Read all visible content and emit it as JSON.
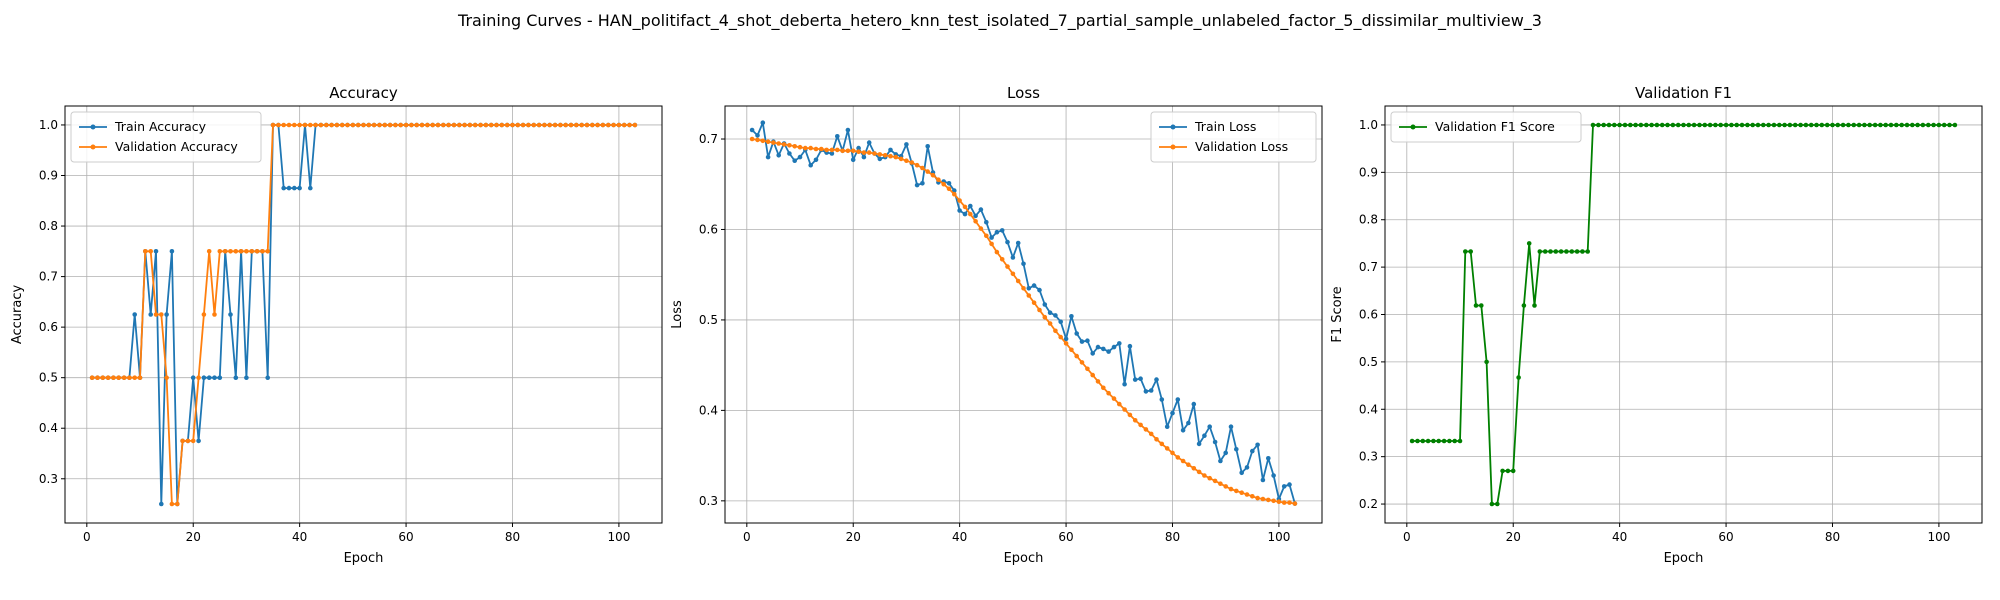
{
  "figure": {
    "suptitle": "Training Curves - HAN_politifact_4_shot_deberta_hetero_knn_test_isolated_7_partial_sample_unlabeled_factor_5_dissimilar_multiview_3"
  },
  "chart_data": [
    {
      "type": "line",
      "title": "Accuracy",
      "xlabel": "Epoch",
      "ylabel": "Accuracy",
      "xlim": [
        -4.1,
        108.1
      ],
      "ylim": [
        0.2125,
        1.0375
      ],
      "xticks": [
        0,
        20,
        40,
        60,
        80,
        100
      ],
      "yticks": [
        0.3,
        0.4,
        0.5,
        0.6,
        0.7,
        0.8,
        0.9,
        1.0
      ],
      "ytick_labels": [
        "0.3",
        "0.4",
        "0.5",
        "0.6",
        "0.7",
        "0.8",
        "0.9",
        "1.0"
      ],
      "grid": true,
      "legend_position": "upper-left",
      "x": [
        1,
        2,
        3,
        4,
        5,
        6,
        7,
        8,
        9,
        10,
        11,
        12,
        13,
        14,
        15,
        16,
        17,
        18,
        19,
        20,
        21,
        22,
        23,
        24,
        25,
        26,
        27,
        28,
        29,
        30,
        31,
        32,
        33,
        34,
        35,
        36,
        37,
        38,
        39,
        40,
        41,
        42,
        43,
        44,
        45,
        46,
        47,
        48,
        49,
        50,
        51,
        52,
        53,
        54,
        55,
        56,
        57,
        58,
        59,
        60,
        61,
        62,
        63,
        64,
        65,
        66,
        67,
        68,
        69,
        70,
        71,
        72,
        73,
        74,
        75,
        76,
        77,
        78,
        79,
        80,
        81,
        82,
        83,
        84,
        85,
        86,
        87,
        88,
        89,
        90,
        91,
        92,
        93,
        94,
        95,
        96,
        97,
        98,
        99,
        100,
        101,
        102,
        103
      ],
      "series": [
        {
          "name": "Train Accuracy",
          "color": "#1f77b4",
          "values": [
            0.5,
            0.5,
            0.5,
            0.5,
            0.5,
            0.5,
            0.5,
            0.5,
            0.625,
            0.5,
            0.75,
            0.625,
            0.75,
            0.25,
            0.625,
            0.75,
            0.25,
            0.375,
            0.375,
            0.5,
            0.375,
            0.5,
            0.5,
            0.5,
            0.5,
            0.75,
            0.625,
            0.5,
            0.75,
            0.5,
            0.75,
            0.75,
            0.75,
            0.5,
            1.0,
            1.0,
            0.875,
            0.875,
            0.875,
            0.875,
            1.0,
            0.875,
            1.0,
            1.0,
            1.0,
            1.0,
            1.0,
            1.0,
            1.0,
            1.0,
            1.0,
            1.0,
            1.0,
            1.0,
            1.0,
            1.0,
            1.0,
            1.0,
            1.0,
            1.0,
            1.0,
            1.0,
            1.0,
            1.0,
            1.0,
            1.0,
            1.0,
            1.0,
            1.0,
            1.0,
            1.0,
            1.0,
            1.0,
            1.0,
            1.0,
            1.0,
            1.0,
            1.0,
            1.0,
            1.0,
            1.0,
            1.0,
            1.0,
            1.0,
            1.0,
            1.0,
            1.0,
            1.0,
            1.0,
            1.0,
            1.0,
            1.0,
            1.0,
            1.0,
            1.0,
            1.0,
            1.0,
            1.0,
            1.0,
            1.0,
            1.0,
            1.0,
            1.0
          ]
        },
        {
          "name": "Validation Accuracy",
          "color": "#ff7f0e",
          "values": [
            0.5,
            0.5,
            0.5,
            0.5,
            0.5,
            0.5,
            0.5,
            0.5,
            0.5,
            0.5,
            0.75,
            0.75,
            0.625,
            0.625,
            0.5,
            0.25,
            0.25,
            0.375,
            0.375,
            0.375,
            0.5,
            0.625,
            0.75,
            0.625,
            0.75,
            0.75,
            0.75,
            0.75,
            0.75,
            0.75,
            0.75,
            0.75,
            0.75,
            0.75,
            1.0,
            1.0,
            1.0,
            1.0,
            1.0,
            1.0,
            1.0,
            1.0,
            1.0,
            1.0,
            1.0,
            1.0,
            1.0,
            1.0,
            1.0,
            1.0,
            1.0,
            1.0,
            1.0,
            1.0,
            1.0,
            1.0,
            1.0,
            1.0,
            1.0,
            1.0,
            1.0,
            1.0,
            1.0,
            1.0,
            1.0,
            1.0,
            1.0,
            1.0,
            1.0,
            1.0,
            1.0,
            1.0,
            1.0,
            1.0,
            1.0,
            1.0,
            1.0,
            1.0,
            1.0,
            1.0,
            1.0,
            1.0,
            1.0,
            1.0,
            1.0,
            1.0,
            1.0,
            1.0,
            1.0,
            1.0,
            1.0,
            1.0,
            1.0,
            1.0,
            1.0,
            1.0,
            1.0,
            1.0,
            1.0,
            1.0,
            1.0,
            1.0,
            1.0
          ]
        }
      ]
    },
    {
      "type": "line",
      "title": "Loss",
      "xlabel": "Epoch",
      "ylabel": "Loss",
      "xlim": [
        -4.1,
        108.1
      ],
      "ylim": [
        0.2755,
        0.7365
      ],
      "xticks": [
        0,
        20,
        40,
        60,
        80,
        100
      ],
      "yticks": [
        0.3,
        0.4,
        0.5,
        0.6,
        0.7
      ],
      "ytick_labels": [
        "0.3",
        "0.4",
        "0.5",
        "0.6",
        "0.7"
      ],
      "grid": true,
      "legend_position": "upper-right",
      "x": [
        1,
        2,
        3,
        4,
        5,
        6,
        7,
        8,
        9,
        10,
        11,
        12,
        13,
        14,
        15,
        16,
        17,
        18,
        19,
        20,
        21,
        22,
        23,
        24,
        25,
        26,
        27,
        28,
        29,
        30,
        31,
        32,
        33,
        34,
        35,
        36,
        37,
        38,
        39,
        40,
        41,
        42,
        43,
        44,
        45,
        46,
        47,
        48,
        49,
        50,
        51,
        52,
        53,
        54,
        55,
        56,
        57,
        58,
        59,
        60,
        61,
        62,
        63,
        64,
        65,
        66,
        67,
        68,
        69,
        70,
        71,
        72,
        73,
        74,
        75,
        76,
        77,
        78,
        79,
        80,
        81,
        82,
        83,
        84,
        85,
        86,
        87,
        88,
        89,
        90,
        91,
        92,
        93,
        94,
        95,
        96,
        97,
        98,
        99,
        100,
        101,
        102,
        103
      ],
      "series": [
        {
          "name": "Train Loss",
          "color": "#1f77b4",
          "values": [
            0.71,
            0.704,
            0.718,
            0.68,
            0.697,
            0.682,
            0.695,
            0.684,
            0.676,
            0.68,
            0.688,
            0.671,
            0.677,
            0.688,
            0.685,
            0.684,
            0.703,
            0.687,
            0.71,
            0.677,
            0.69,
            0.68,
            0.696,
            0.684,
            0.678,
            0.68,
            0.688,
            0.683,
            0.681,
            0.694,
            0.673,
            0.649,
            0.651,
            0.692,
            0.663,
            0.652,
            0.653,
            0.651,
            0.643,
            0.621,
            0.617,
            0.626,
            0.615,
            0.622,
            0.608,
            0.591,
            0.597,
            0.599,
            0.586,
            0.569,
            0.585,
            0.562,
            0.535,
            0.538,
            0.533,
            0.517,
            0.508,
            0.505,
            0.498,
            0.479,
            0.504,
            0.485,
            0.476,
            0.477,
            0.463,
            0.47,
            0.468,
            0.465,
            0.47,
            0.474,
            0.429,
            0.471,
            0.434,
            0.435,
            0.421,
            0.422,
            0.434,
            0.412,
            0.382,
            0.397,
            0.412,
            0.378,
            0.386,
            0.407,
            0.363,
            0.372,
            0.382,
            0.365,
            0.344,
            0.353,
            0.382,
            0.357,
            0.331,
            0.337,
            0.355,
            0.362,
            0.323,
            0.347,
            0.328,
            0.302,
            0.316,
            0.318,
            0.297
          ]
        },
        {
          "name": "Validation Loss",
          "color": "#ff7f0e",
          "values": [
            0.7,
            0.699,
            0.698,
            0.697,
            0.696,
            0.695,
            0.694,
            0.693,
            0.692,
            0.691,
            0.69,
            0.69,
            0.689,
            0.689,
            0.688,
            0.688,
            0.688,
            0.687,
            0.687,
            0.687,
            0.686,
            0.685,
            0.685,
            0.684,
            0.683,
            0.682,
            0.681,
            0.68,
            0.678,
            0.676,
            0.674,
            0.671,
            0.668,
            0.664,
            0.66,
            0.655,
            0.65,
            0.645,
            0.639,
            0.632,
            0.625,
            0.617,
            0.609,
            0.601,
            0.593,
            0.584,
            0.575,
            0.567,
            0.559,
            0.551,
            0.543,
            0.535,
            0.527,
            0.519,
            0.511,
            0.503,
            0.496,
            0.488,
            0.481,
            0.474,
            0.467,
            0.46,
            0.453,
            0.446,
            0.439,
            0.432,
            0.425,
            0.419,
            0.413,
            0.407,
            0.401,
            0.395,
            0.389,
            0.384,
            0.379,
            0.374,
            0.368,
            0.363,
            0.358,
            0.353,
            0.348,
            0.344,
            0.34,
            0.336,
            0.332,
            0.328,
            0.325,
            0.322,
            0.319,
            0.316,
            0.313,
            0.311,
            0.309,
            0.307,
            0.305,
            0.303,
            0.302,
            0.301,
            0.3,
            0.299,
            0.298,
            0.298,
            0.297
          ]
        }
      ]
    },
    {
      "type": "line",
      "title": "Validation F1",
      "xlabel": "Epoch",
      "ylabel": "F1 Score",
      "xlim": [
        -4.1,
        108.1
      ],
      "ylim": [
        0.16,
        1.04
      ],
      "xticks": [
        0,
        20,
        40,
        60,
        80,
        100
      ],
      "yticks": [
        0.2,
        0.3,
        0.4,
        0.5,
        0.6,
        0.7,
        0.8,
        0.9,
        1.0
      ],
      "ytick_labels": [
        "0.2",
        "0.3",
        "0.4",
        "0.5",
        "0.6",
        "0.7",
        "0.8",
        "0.9",
        "1.0"
      ],
      "grid": true,
      "legend_position": "upper-left",
      "x": [
        1,
        2,
        3,
        4,
        5,
        6,
        7,
        8,
        9,
        10,
        11,
        12,
        13,
        14,
        15,
        16,
        17,
        18,
        19,
        20,
        21,
        22,
        23,
        24,
        25,
        26,
        27,
        28,
        29,
        30,
        31,
        32,
        33,
        34,
        35,
        36,
        37,
        38,
        39,
        40,
        41,
        42,
        43,
        44,
        45,
        46,
        47,
        48,
        49,
        50,
        51,
        52,
        53,
        54,
        55,
        56,
        57,
        58,
        59,
        60,
        61,
        62,
        63,
        64,
        65,
        66,
        67,
        68,
        69,
        70,
        71,
        72,
        73,
        74,
        75,
        76,
        77,
        78,
        79,
        80,
        81,
        82,
        83,
        84,
        85,
        86,
        87,
        88,
        89,
        90,
        91,
        92,
        93,
        94,
        95,
        96,
        97,
        98,
        99,
        100,
        101,
        102,
        103
      ],
      "series": [
        {
          "name": "Validation F1 Score",
          "color": "#008000",
          "values": [
            0.333,
            0.333,
            0.333,
            0.333,
            0.333,
            0.333,
            0.333,
            0.333,
            0.333,
            0.333,
            0.733,
            0.733,
            0.619,
            0.619,
            0.5,
            0.2,
            0.2,
            0.27,
            0.27,
            0.27,
            0.467,
            0.619,
            0.75,
            0.619,
            0.733,
            0.733,
            0.733,
            0.733,
            0.733,
            0.733,
            0.733,
            0.733,
            0.733,
            0.733,
            1.0,
            1.0,
            1.0,
            1.0,
            1.0,
            1.0,
            1.0,
            1.0,
            1.0,
            1.0,
            1.0,
            1.0,
            1.0,
            1.0,
            1.0,
            1.0,
            1.0,
            1.0,
            1.0,
            1.0,
            1.0,
            1.0,
            1.0,
            1.0,
            1.0,
            1.0,
            1.0,
            1.0,
            1.0,
            1.0,
            1.0,
            1.0,
            1.0,
            1.0,
            1.0,
            1.0,
            1.0,
            1.0,
            1.0,
            1.0,
            1.0,
            1.0,
            1.0,
            1.0,
            1.0,
            1.0,
            1.0,
            1.0,
            1.0,
            1.0,
            1.0,
            1.0,
            1.0,
            1.0,
            1.0,
            1.0,
            1.0,
            1.0,
            1.0,
            1.0,
            1.0,
            1.0,
            1.0,
            1.0,
            1.0,
            1.0,
            1.0,
            1.0,
            1.0
          ]
        }
      ]
    }
  ]
}
